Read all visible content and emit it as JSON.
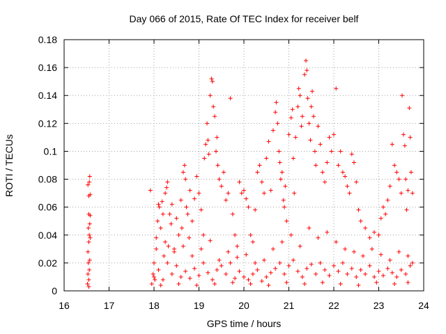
{
  "chart_data": {
    "type": "scatter",
    "title": "Day 066 of 2015, Rate Of TEC Index for receiver belf",
    "xlabel": "GPS time / hours",
    "ylabel": "ROTI / TECUs",
    "xlim": [
      16,
      24
    ],
    "ylim": [
      0,
      0.18
    ],
    "grid": true,
    "marker": "+",
    "marker_color": "#ff0000",
    "x_ticks": [
      16,
      17,
      18,
      19,
      20,
      21,
      22,
      23,
      24
    ],
    "x_tick_labels": [
      "16",
      "17",
      "18",
      "19",
      "20",
      "21",
      "22",
      "23",
      "24"
    ],
    "y_ticks": [
      0,
      0.02,
      0.04,
      0.06,
      0.08,
      0.1,
      0.12,
      0.14,
      0.16,
      0.18
    ],
    "y_tick_labels": [
      "0",
      "0.02",
      "0.04",
      "0.06",
      "0.08",
      "0.1",
      "0.12",
      "0.14",
      "0.16",
      "0.18"
    ],
    "series": [
      {
        "name": "ROTI",
        "points": [
          [
            16.52,
            0.005
          ],
          [
            16.53,
            0.012
          ],
          [
            16.54,
            0.02
          ],
          [
            16.55,
            0.008
          ],
          [
            16.53,
            0.028
          ],
          [
            16.55,
            0.035
          ],
          [
            16.54,
            0.045
          ],
          [
            16.56,
            0.04
          ],
          [
            16.55,
            0.055
          ],
          [
            16.53,
            0.076
          ],
          [
            16.56,
            0.078
          ],
          [
            16.57,
            0.082
          ],
          [
            16.55,
            0.068
          ],
          [
            16.58,
            0.069
          ],
          [
            16.57,
            0.048
          ],
          [
            16.58,
            0.054
          ],
          [
            16.56,
            0.015
          ],
          [
            16.57,
            0.022
          ],
          [
            16.55,
            0.003
          ],
          [
            16.58,
            0.038
          ],
          [
            17.92,
            0.072
          ],
          [
            17.95,
            0.005
          ],
          [
            17.98,
            0.012
          ],
          [
            18.0,
            0.02
          ],
          [
            18.02,
            0.008
          ],
          [
            18.05,
            0.038
          ],
          [
            18.08,
            0.05
          ],
          [
            18.1,
            0.062
          ],
          [
            18.12,
            0.06
          ],
          [
            18.15,
            0.045
          ],
          [
            18.18,
            0.064
          ],
          [
            18.2,
            0.055
          ],
          [
            18.22,
            0.025
          ],
          [
            18.25,
            0.07
          ],
          [
            18.28,
            0.074
          ],
          [
            18.3,
            0.078
          ],
          [
            18.32,
            0.032
          ],
          [
            18.35,
            0.055
          ],
          [
            18.38,
            0.048
          ],
          [
            18.4,
            0.062
          ],
          [
            18.45,
            0.03
          ],
          [
            18.5,
            0.052
          ],
          [
            18.55,
            0.04
          ],
          [
            18.6,
            0.065
          ],
          [
            18.62,
            0.045
          ],
          [
            18.65,
            0.085
          ],
          [
            18.68,
            0.09
          ],
          [
            18.7,
            0.08
          ],
          [
            18.72,
            0.06
          ],
          [
            18.75,
            0.055
          ],
          [
            18.78,
            0.038
          ],
          [
            18.8,
            0.072
          ],
          [
            18.85,
            0.05
          ],
          [
            18.9,
            0.066
          ],
          [
            18.95,
            0.082
          ],
          [
            19.0,
            0.07
          ],
          [
            19.05,
            0.058
          ],
          [
            19.1,
            0.04
          ],
          [
            19.12,
            0.095
          ],
          [
            19.15,
            0.105
          ],
          [
            19.18,
            0.12
          ],
          [
            19.2,
            0.108
          ],
          [
            19.22,
            0.098
          ],
          [
            19.25,
            0.14
          ],
          [
            19.28,
            0.152
          ],
          [
            19.3,
            0.15
          ],
          [
            19.32,
            0.132
          ],
          [
            19.35,
            0.125
          ],
          [
            19.38,
            0.1
          ],
          [
            19.4,
            0.11
          ],
          [
            19.42,
            0.09
          ],
          [
            19.45,
            0.08
          ],
          [
            19.5,
            0.075
          ],
          [
            19.55,
            0.085
          ],
          [
            19.6,
            0.065
          ],
          [
            19.65,
            0.07
          ],
          [
            19.7,
            0.138
          ],
          [
            19.75,
            0.055
          ],
          [
            19.8,
            0.04
          ],
          [
            19.85,
            0.032
          ],
          [
            19.9,
            0.078
          ],
          [
            19.95,
            0.07
          ],
          [
            20.0,
            0.072
          ],
          [
            20.05,
            0.066
          ],
          [
            20.1,
            0.06
          ],
          [
            20.15,
            0.04
          ],
          [
            20.2,
            0.035
          ],
          [
            20.25,
            0.058
          ],
          [
            20.3,
            0.085
          ],
          [
            20.35,
            0.09
          ],
          [
            20.4,
            0.078
          ],
          [
            20.45,
            0.07
          ],
          [
            20.5,
            0.095
          ],
          [
            20.55,
            0.107
          ],
          [
            20.6,
            0.072
          ],
          [
            20.65,
            0.115
          ],
          [
            20.7,
            0.128
          ],
          [
            20.72,
            0.135
          ],
          [
            20.75,
            0.12
          ],
          [
            20.78,
            0.1
          ],
          [
            20.8,
            0.092
          ],
          [
            20.82,
            0.08
          ],
          [
            20.85,
            0.085
          ],
          [
            20.88,
            0.065
          ],
          [
            20.9,
            0.06
          ],
          [
            20.92,
            0.075
          ],
          [
            20.95,
            0.05
          ],
          [
            21.0,
            0.112
          ],
          [
            21.05,
            0.124
          ],
          [
            21.08,
            0.13
          ],
          [
            21.1,
            0.095
          ],
          [
            21.12,
            0.07
          ],
          [
            21.15,
            0.11
          ],
          [
            21.2,
            0.132
          ],
          [
            21.22,
            0.145
          ],
          [
            21.25,
            0.14
          ],
          [
            21.28,
            0.118
          ],
          [
            21.3,
            0.125
          ],
          [
            21.35,
            0.155
          ],
          [
            21.38,
            0.165
          ],
          [
            21.4,
            0.158
          ],
          [
            21.42,
            0.138
          ],
          [
            21.45,
            0.12
          ],
          [
            21.48,
            0.108
          ],
          [
            21.5,
            0.132
          ],
          [
            21.52,
            0.143
          ],
          [
            21.55,
            0.125
          ],
          [
            21.58,
            0.1
          ],
          [
            21.6,
            0.09
          ],
          [
            21.65,
            0.118
          ],
          [
            21.7,
            0.105
          ],
          [
            21.75,
            0.085
          ],
          [
            21.8,
            0.078
          ],
          [
            21.85,
            0.092
          ],
          [
            21.9,
            0.11
          ],
          [
            21.95,
            0.1
          ],
          [
            22.0,
            0.112
          ],
          [
            22.05,
            0.145
          ],
          [
            22.1,
            0.09
          ],
          [
            22.15,
            0.1
          ],
          [
            22.2,
            0.085
          ],
          [
            22.25,
            0.082
          ],
          [
            22.3,
            0.075
          ],
          [
            22.35,
            0.07
          ],
          [
            22.4,
            0.098
          ],
          [
            22.45,
            0.092
          ],
          [
            22.5,
            0.078
          ],
          [
            22.55,
            0.058
          ],
          [
            22.6,
            0.05
          ],
          [
            22.7,
            0.045
          ],
          [
            22.8,
            0.038
          ],
          [
            22.9,
            0.042
          ],
          [
            23.0,
            0.04
          ],
          [
            23.05,
            0.052
          ],
          [
            23.1,
            0.06
          ],
          [
            23.15,
            0.055
          ],
          [
            23.2,
            0.065
          ],
          [
            23.25,
            0.075
          ],
          [
            23.3,
            0.105
          ],
          [
            23.35,
            0.09
          ],
          [
            23.4,
            0.085
          ],
          [
            23.45,
            0.08
          ],
          [
            23.5,
            0.07
          ],
          [
            23.52,
            0.14
          ],
          [
            23.55,
            0.112
          ],
          [
            23.58,
            0.104
          ],
          [
            23.6,
            0.08
          ],
          [
            23.62,
            0.058
          ],
          [
            23.65,
            0.072
          ],
          [
            23.68,
            0.131
          ],
          [
            23.7,
            0.11
          ],
          [
            23.72,
            0.085
          ],
          [
            23.75,
            0.07
          ],
          [
            23.75,
            0.02
          ],
          [
            18.0,
            0.01
          ],
          [
            18.1,
            0.015
          ],
          [
            18.2,
            0.008
          ],
          [
            18.3,
            0.02
          ],
          [
            18.4,
            0.012
          ],
          [
            18.5,
            0.018
          ],
          [
            18.6,
            0.01
          ],
          [
            18.7,
            0.014
          ],
          [
            18.8,
            0.009
          ],
          [
            18.9,
            0.016
          ],
          [
            19.0,
            0.011
          ],
          [
            19.1,
            0.02
          ],
          [
            19.2,
            0.013
          ],
          [
            19.3,
            0.008
          ],
          [
            19.4,
            0.015
          ],
          [
            19.5,
            0.018
          ],
          [
            19.6,
            0.012
          ],
          [
            19.7,
            0.02
          ],
          [
            19.8,
            0.009
          ],
          [
            19.9,
            0.014
          ],
          [
            20.0,
            0.01
          ],
          [
            20.1,
            0.008
          ],
          [
            20.2,
            0.012
          ],
          [
            20.3,
            0.015
          ],
          [
            20.4,
            0.007
          ],
          [
            20.5,
            0.01
          ],
          [
            20.6,
            0.013
          ],
          [
            20.7,
            0.016
          ],
          [
            20.8,
            0.02
          ],
          [
            20.9,
            0.012
          ],
          [
            21.0,
            0.018
          ],
          [
            21.1,
            0.022
          ],
          [
            21.2,
            0.014
          ],
          [
            21.3,
            0.01
          ],
          [
            21.4,
            0.016
          ],
          [
            21.5,
            0.019
          ],
          [
            21.6,
            0.012
          ],
          [
            21.7,
            0.02
          ],
          [
            21.8,
            0.015
          ],
          [
            21.9,
            0.011
          ],
          [
            22.0,
            0.018
          ],
          [
            22.1,
            0.014
          ],
          [
            22.2,
            0.02
          ],
          [
            22.3,
            0.012
          ],
          [
            22.4,
            0.016
          ],
          [
            22.5,
            0.01
          ],
          [
            22.6,
            0.015
          ],
          [
            22.7,
            0.012
          ],
          [
            22.8,
            0.018
          ],
          [
            22.9,
            0.01
          ],
          [
            23.0,
            0.014
          ],
          [
            23.1,
            0.011
          ],
          [
            23.2,
            0.016
          ],
          [
            23.3,
            0.013
          ],
          [
            23.4,
            0.01
          ],
          [
            23.5,
            0.015
          ],
          [
            23.6,
            0.012
          ],
          [
            23.7,
            0.018
          ],
          [
            18.05,
            0.03
          ],
          [
            18.25,
            0.035
          ],
          [
            18.45,
            0.028
          ],
          [
            18.65,
            0.032
          ],
          [
            18.85,
            0.025
          ],
          [
            19.05,
            0.03
          ],
          [
            19.25,
            0.036
          ],
          [
            19.45,
            0.022
          ],
          [
            19.65,
            0.028
          ],
          [
            19.85,
            0.024
          ],
          [
            20.05,
            0.026
          ],
          [
            20.25,
            0.02
          ],
          [
            20.45,
            0.022
          ],
          [
            20.65,
            0.03
          ],
          [
            20.85,
            0.035
          ],
          [
            21.05,
            0.04
          ],
          [
            21.25,
            0.032
          ],
          [
            21.45,
            0.045
          ],
          [
            21.65,
            0.038
          ],
          [
            21.85,
            0.042
          ],
          [
            22.05,
            0.035
          ],
          [
            22.25,
            0.03
          ],
          [
            22.45,
            0.028
          ],
          [
            22.65,
            0.025
          ],
          [
            22.85,
            0.03
          ],
          [
            23.05,
            0.026
          ],
          [
            23.25,
            0.022
          ],
          [
            23.45,
            0.028
          ],
          [
            23.65,
            0.025
          ],
          [
            18.15,
            0.004
          ],
          [
            18.55,
            0.005
          ],
          [
            18.95,
            0.004
          ],
          [
            19.35,
            0.005
          ],
          [
            19.75,
            0.006
          ],
          [
            20.15,
            0.005
          ],
          [
            20.55,
            0.004
          ],
          [
            20.95,
            0.006
          ],
          [
            21.35,
            0.005
          ],
          [
            21.75,
            0.006
          ],
          [
            22.15,
            0.005
          ],
          [
            22.55,
            0.004
          ],
          [
            22.95,
            0.006
          ],
          [
            23.35,
            0.005
          ],
          [
            23.65,
            0.006
          ]
        ]
      }
    ]
  }
}
